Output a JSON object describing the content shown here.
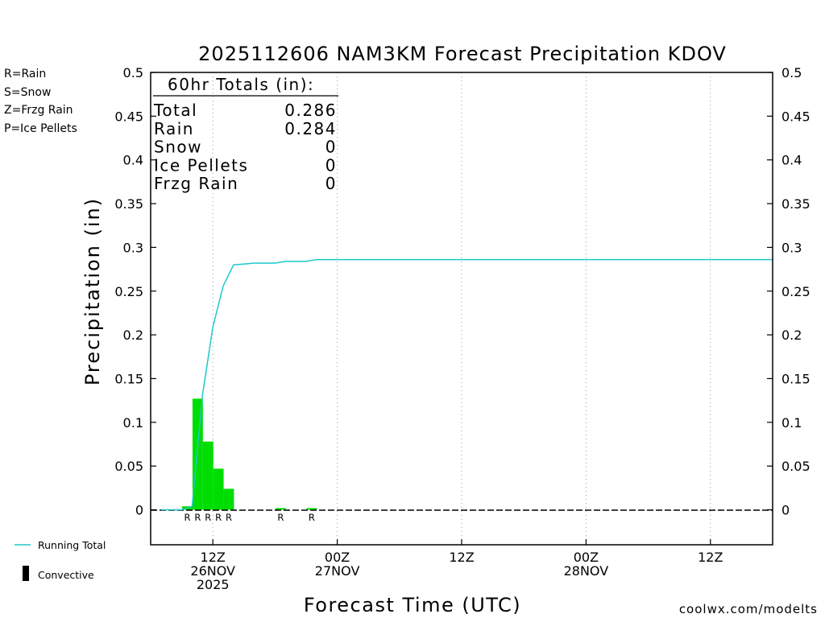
{
  "title": "2025112606 NAM3KM Forecast Precipitation KDOV",
  "legend_types": [
    {
      "text": "R=Rain",
      "color": "#00cc00"
    },
    {
      "text": "S=Snow",
      "color": "#3355ee"
    },
    {
      "text": "Z=Frzg Rain",
      "color": "#ff8c33"
    },
    {
      "text": "P=Ice Pellets",
      "color": "#ee1188"
    }
  ],
  "legend_bottom": {
    "running_total": "Running Total",
    "convective": "Convective",
    "running_total_color": "#1ec8c8"
  },
  "totals_box": {
    "header": "60hr Totals (in):",
    "rows": [
      {
        "label": "Total",
        "value": "0.286"
      },
      {
        "label": "Rain",
        "value": "0.284"
      },
      {
        "label": "Snow",
        "value": "0"
      },
      {
        "label": "Ice Pellets",
        "value": "0"
      },
      {
        "label": "Frzg Rain",
        "value": "0"
      }
    ]
  },
  "credit": "coolwx.com/modelts",
  "chart_data": {
    "type": "bar",
    "title": "2025112606 NAM3KM Forecast Precipitation KDOV",
    "xlabel": "Forecast Time (UTC)",
    "ylabel": "Precipitation (in)",
    "ylim": [
      -0.04,
      0.5
    ],
    "y_ticks": [
      0,
      0.05,
      0.1,
      0.15,
      0.2,
      0.25,
      0.3,
      0.35,
      0.4,
      0.45,
      0.5
    ],
    "y_tick_labels": [
      "0",
      "0.05",
      "0.1",
      "0.15",
      "0.2",
      "0.25",
      "0.3",
      "0.35",
      "0.4",
      "0.45",
      "0.5"
    ],
    "xlim_hours": [
      6,
      66
    ],
    "x_ticks": [
      {
        "hour": 12,
        "lines": [
          "12Z",
          "26NOV",
          "2025"
        ]
      },
      {
        "hour": 24,
        "lines": [
          "00Z",
          "27NOV"
        ]
      },
      {
        "hour": 36,
        "lines": [
          "12Z"
        ]
      },
      {
        "hour": 48,
        "lines": [
          "00Z",
          "28NOV"
        ]
      },
      {
        "hour": 60,
        "lines": [
          "12Z"
        ]
      }
    ],
    "grid": "vertical dotted",
    "bar_color": "#00dd00",
    "bars": [
      {
        "hour": 10,
        "value": 0.004,
        "type": "R"
      },
      {
        "hour": 11,
        "value": 0.127,
        "type": "R"
      },
      {
        "hour": 12,
        "value": 0.078,
        "type": "R"
      },
      {
        "hour": 13,
        "value": 0.047,
        "type": "R"
      },
      {
        "hour": 14,
        "value": 0.024,
        "type": "R"
      },
      {
        "hour": 19,
        "value": 0.002,
        "type": "R"
      },
      {
        "hour": 22,
        "value": 0.002,
        "type": "R"
      }
    ],
    "series": [
      {
        "name": "Running Total",
        "x": [
          7,
          8,
          9,
          10,
          11,
          12,
          13,
          14,
          15,
          16,
          17,
          18,
          19,
          20,
          21,
          22,
          23,
          24,
          30,
          36,
          42,
          48,
          54,
          60,
          66
        ],
        "values": [
          0,
          0,
          0,
          0.004,
          0.131,
          0.209,
          0.256,
          0.28,
          0.281,
          0.282,
          0.282,
          0.282,
          0.284,
          0.284,
          0.284,
          0.286,
          0.286,
          0.286,
          0.286,
          0.286,
          0.286,
          0.286,
          0.286,
          0.286,
          0.286
        ]
      }
    ]
  }
}
